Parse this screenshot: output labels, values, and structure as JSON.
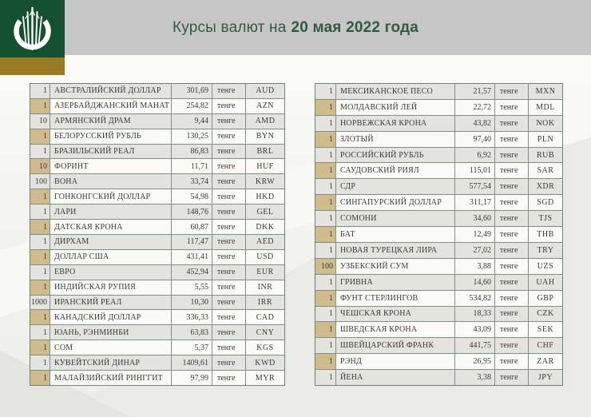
{
  "header": {
    "logo_icon": "wheat-emblem-icon",
    "title_prefix": "Курсы валют на",
    "title_date": "20 мая 2022 года"
  },
  "tables": {
    "unit_label": "тенге",
    "left": {
      "rows": [
        {
          "qty": "1",
          "name": "АВСТРАЛИЙСКИЙ ДОЛЛАР",
          "rate": "301,69",
          "code": "AUD"
        },
        {
          "qty": "1",
          "name": "АЗЕРБАЙДЖАНСКИЙ МАНАТ",
          "rate": "254,82",
          "code": "AZN"
        },
        {
          "qty": "10",
          "name": "АРМЯНСКИЙ ДРАМ",
          "rate": "9,44",
          "code": "AMD"
        },
        {
          "qty": "1",
          "name": "БЕЛОРУССКИЙ РУБЛЬ",
          "rate": "130,25",
          "code": "BYN"
        },
        {
          "qty": "1",
          "name": "БРАЗИЛЬСКИЙ РЕАЛ",
          "rate": "86,83",
          "code": "BRL"
        },
        {
          "qty": "10",
          "name": "ФОРИНТ",
          "rate": "11,71",
          "code": "HUF"
        },
        {
          "qty": "100",
          "name": "ВОНА",
          "rate": "33,74",
          "code": "KRW"
        },
        {
          "qty": "1",
          "name": "ГОНКОНГСКИЙ ДОЛЛАР",
          "rate": "54,98",
          "code": "HKD"
        },
        {
          "qty": "1",
          "name": "ЛАРИ",
          "rate": "148,76",
          "code": "GEL"
        },
        {
          "qty": "1",
          "name": "ДАТСКАЯ КРОНА",
          "rate": "60,87",
          "code": "DKK"
        },
        {
          "qty": "1",
          "name": "ДИРХАМ",
          "rate": "117,47",
          "code": "AED"
        },
        {
          "qty": "1",
          "name": "ДОЛЛАР США",
          "rate": "431,41",
          "code": "USD"
        },
        {
          "qty": "1",
          "name": "ЕВРО",
          "rate": "452,94",
          "code": "EUR"
        },
        {
          "qty": "1",
          "name": "ИНДИЙСКАЯ РУПИЯ",
          "rate": "5,55",
          "code": "INR"
        },
        {
          "qty": "1000",
          "name": "ИРАНСКИЙ РЕАЛ",
          "rate": "10,30",
          "code": "IRR"
        },
        {
          "qty": "1",
          "name": "КАНАДСКИЙ ДОЛЛАР",
          "rate": "336,33",
          "code": "CAD"
        },
        {
          "qty": "1",
          "name": "ЮАНЬ, РЭНМИНБИ",
          "rate": "63,83",
          "code": "CNY"
        },
        {
          "qty": "1",
          "name": "СОМ",
          "rate": "5,37",
          "code": "KGS"
        },
        {
          "qty": "1",
          "name": "КУВЕЙТСКИЙ ДИНАР",
          "rate": "1409,61",
          "code": "KWD"
        },
        {
          "qty": "1",
          "name": "МАЛАЙЗИЙСКИЙ РИНГГИТ",
          "rate": "97,99",
          "code": "MYR"
        }
      ]
    },
    "right": {
      "rows": [
        {
          "qty": "1",
          "name": "МЕКСИКАНСКОЕ ПЕСО",
          "rate": "21,57",
          "code": "MXN"
        },
        {
          "qty": "1",
          "name": "МОЛДАВСКИЙ ЛЕЙ",
          "rate": "22,72",
          "code": "MDL"
        },
        {
          "qty": "1",
          "name": "НОРВЕЖСКАЯ КРОНА",
          "rate": "43,82",
          "code": "NOK"
        },
        {
          "qty": "1",
          "name": "ЗЛОТЫЙ",
          "rate": "97,40",
          "code": "PLN"
        },
        {
          "qty": "1",
          "name": "РОССИЙСКИЙ РУБЛЬ",
          "rate": "6,92",
          "code": "RUB"
        },
        {
          "qty": "1",
          "name": "САУДОВСКИЙ РИЯЛ",
          "rate": "115,01",
          "code": "SAR"
        },
        {
          "qty": "1",
          "name": "СДР",
          "rate": "577,54",
          "code": "XDR"
        },
        {
          "qty": "1",
          "name": "СИНГАПУРСКИЙ ДОЛЛАР",
          "rate": "311,17",
          "code": "SGD"
        },
        {
          "qty": "1",
          "name": "СОМОНИ",
          "rate": "34,60",
          "code": "TJS"
        },
        {
          "qty": "1",
          "name": "БАТ",
          "rate": "12,49",
          "code": "THB"
        },
        {
          "qty": "1",
          "name": "НОВАЯ ТУРЕЦКАЯ ЛИРА",
          "rate": "27,02",
          "code": "TRY"
        },
        {
          "qty": "100",
          "name": "УЗБЕКСКИЙ СУМ",
          "rate": "3,88",
          "code": "UZS"
        },
        {
          "qty": "1",
          "name": "ГРИВНА",
          "rate": "14,60",
          "code": "UAH"
        },
        {
          "qty": "1",
          "name": "ФУНТ СТЕРЛИНГОВ",
          "rate": "534,82",
          "code": "GBP"
        },
        {
          "qty": "1",
          "name": "ЧЕШСКАЯ КРОНА",
          "rate": "18,33",
          "code": "CZK"
        },
        {
          "qty": "1",
          "name": "ШВЕДСКАЯ КРОНА",
          "rate": "43,09",
          "code": "SEK"
        },
        {
          "qty": "1",
          "name": "ШВЕЙЦАРСКИЙ ФРАНК",
          "rate": "441,75",
          "code": "CHF"
        },
        {
          "qty": "1",
          "name": "РЭНД",
          "rate": "26,95",
          "code": "ZAR"
        },
        {
          "qty": "1",
          "name": "ЙЕНА",
          "rate": "3,38",
          "code": "JPY"
        }
      ]
    }
  },
  "colors": {
    "logo_green": "#15512e",
    "logo_gold": "#9b7b22",
    "header_band_gray": "#c6c6c6",
    "title_green": "#2d5c41",
    "row_gray": "#e3e3e1",
    "row_white": "#fafaf8",
    "amount_cell_gold": "#cfbb8c",
    "table_border_green": "#7e937d"
  }
}
